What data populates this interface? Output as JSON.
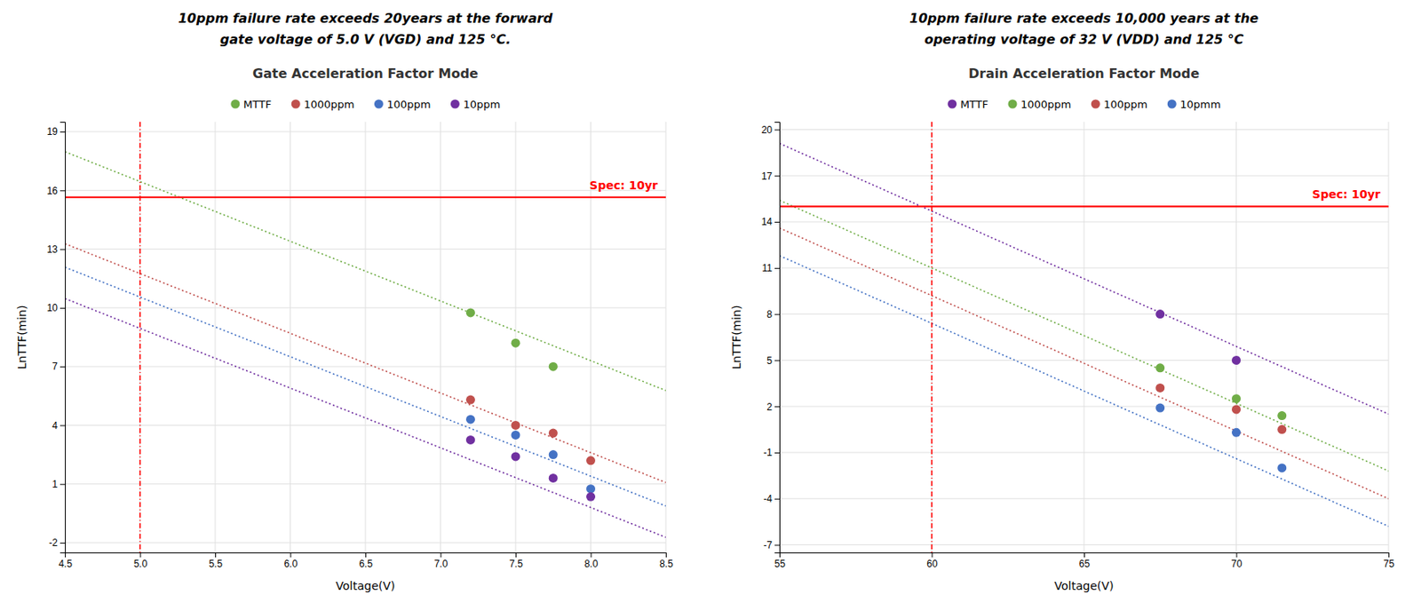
{
  "chart_data": [
    {
      "type": "scatter",
      "title": "Gate Acceleration Factor Mode",
      "subtitle": [
        "10ppm failure rate exceeds 20years at the forward",
        "gate voltage of 5.0 V (VGD) and 125 °C."
      ],
      "xlabel": "Voltage(V)",
      "ylabel": "LnTTF(min)",
      "xlim": [
        4.5,
        8.5
      ],
      "ylim": [
        -2.5,
        19.5
      ],
      "xticks": [
        4.5,
        {
          "value": 5.0,
          "label": "5.0"
        },
        5.5,
        {
          "value": 6.0,
          "label": "6.0"
        },
        6.5,
        {
          "value": 7.0,
          "label": "7.0"
        },
        7.5,
        {
          "value": 8.0,
          "label": "8.0"
        },
        8.5
      ],
      "yticks": [
        -2,
        1,
        4,
        7,
        10,
        13,
        16,
        19
      ],
      "grid": true,
      "legend": "top",
      "hline": 15.65,
      "vline": 5.0,
      "annotation": "Spec: 10yr",
      "series": [
        {
          "name": "MTTF",
          "color": "#70ad47",
          "marker": "o",
          "x": [
            7.2,
            7.5,
            7.75
          ],
          "values": [
            9.75,
            8.2,
            7.0
          ],
          "line_style": "dotted",
          "fit_x": [
            4.5,
            8.5
          ],
          "fit_values": [
            17.975,
            5.775
          ]
        },
        {
          "name": "1000ppm",
          "color": "#c0504d",
          "marker": "o",
          "x": [
            7.2,
            7.5,
            7.75,
            8.0
          ],
          "values": [
            5.3,
            4.0,
            3.6,
            2.2
          ],
          "line_style": "dotted",
          "fit_x": [
            4.5,
            8.5
          ],
          "fit_values": [
            13.275,
            1.075
          ]
        },
        {
          "name": "100ppm",
          "color": "#4472c4",
          "marker": "o",
          "x": [
            7.2,
            7.5,
            7.75,
            8.0
          ],
          "values": [
            4.3,
            3.5,
            2.5,
            0.75
          ],
          "line_style": "dotted",
          "fit_x": [
            4.5,
            8.5
          ],
          "fit_values": [
            12.075,
            -0.125
          ]
        },
        {
          "name": "10ppm",
          "color": "#7030a0",
          "marker": "o",
          "x": [
            7.2,
            7.5,
            7.75,
            8.0
          ],
          "values": [
            3.25,
            2.4,
            1.3,
            0.35
          ],
          "line_style": "dotted",
          "fit_x": [
            4.5,
            8.5
          ],
          "fit_values": [
            10.475,
            -1.725
          ]
        }
      ]
    },
    {
      "type": "scatter",
      "title": "Drain Acceleration Factor Mode",
      "subtitle": [
        "10ppm failure rate exceeds 10,000 years at the",
        "operating voltage of 32 V (VDD) and 125 °C"
      ],
      "xlabel": "Voltage(V)",
      "ylabel": "LnTTF(min)",
      "xlim": [
        55,
        75
      ],
      "ylim": [
        -7.5,
        20.5
      ],
      "xticks": [
        55,
        60,
        65,
        70,
        75
      ],
      "yticks": [
        -7,
        -4,
        -1,
        2,
        5,
        8,
        11,
        14,
        17,
        20
      ],
      "grid": true,
      "legend": "top",
      "hline": 15.0,
      "vline": 60,
      "annotation": "Spec: 10yr",
      "series": [
        {
          "name": "MTTF",
          "color": "#7030a0",
          "marker": "o",
          "x": [
            67.5,
            70.0
          ],
          "values": [
            8.0,
            5.0
          ],
          "line_style": "dotted",
          "fit_x": [
            55,
            75
          ],
          "fit_values": [
            19.1,
            1.5
          ]
        },
        {
          "name": "1000ppm",
          "color": "#70ad47",
          "marker": "o",
          "x": [
            67.5,
            70.0,
            71.5
          ],
          "values": [
            4.5,
            2.5,
            1.4
          ],
          "line_style": "dotted",
          "fit_x": [
            55,
            75
          ],
          "fit_values": [
            15.4,
            -2.2
          ]
        },
        {
          "name": "100ppm",
          "color": "#c0504d",
          "marker": "o",
          "x": [
            67.5,
            70.0,
            71.5
          ],
          "values": [
            3.2,
            1.8,
            0.5
          ],
          "line_style": "dotted",
          "fit_x": [
            55,
            75
          ],
          "fit_values": [
            13.6,
            -4.0
          ]
        },
        {
          "name": "10pmm",
          "color": "#4472c4",
          "marker": "o",
          "x": [
            67.5,
            70.0,
            71.5
          ],
          "values": [
            1.9,
            0.3,
            -2.0
          ],
          "line_style": "dotted",
          "fit_x": [
            55,
            75
          ],
          "fit_values": [
            11.8,
            -5.8
          ]
        }
      ]
    }
  ]
}
